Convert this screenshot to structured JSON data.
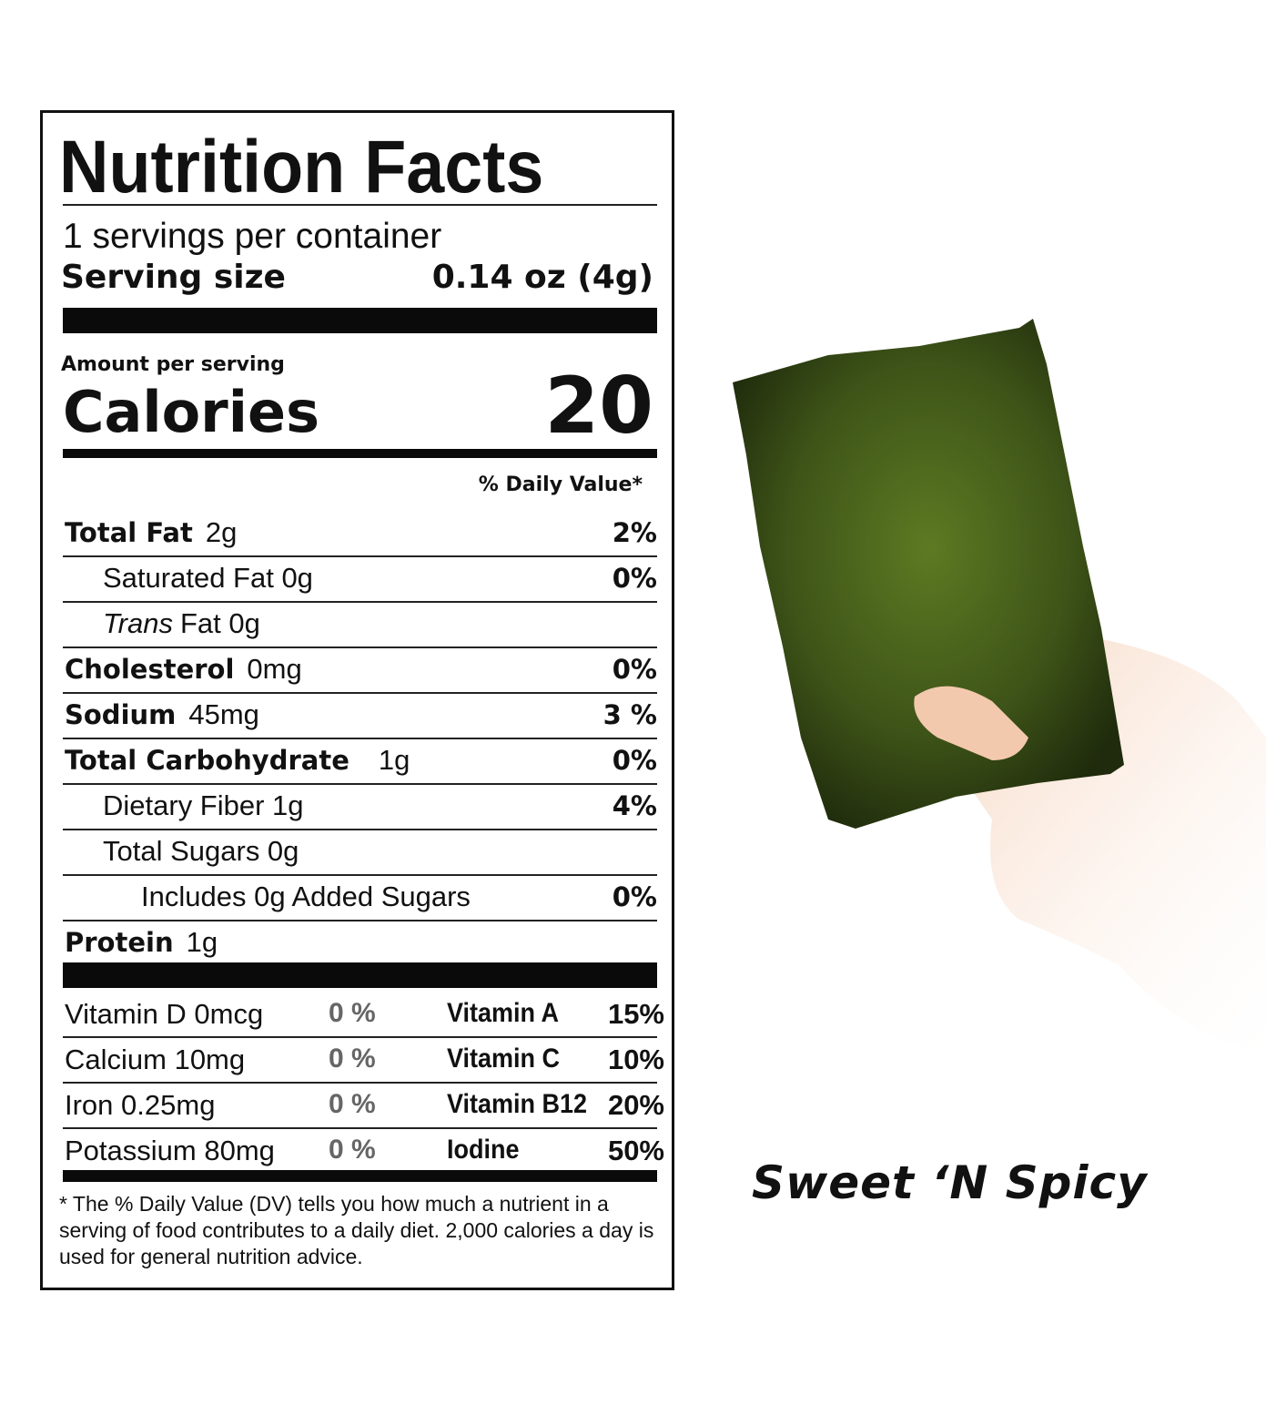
{
  "label": {
    "title": "Nutrition Facts",
    "servings": "1 servings per container",
    "serving_size_label": "Serving size",
    "serving_size_value": "0.14 oz (4g)",
    "amount_per_serving": "Amount per serving",
    "calories_label": "Calories",
    "calories_value": "20",
    "dv_header": "% Daily Value*",
    "nutrients": [
      {
        "name": "Total Fat",
        "amount": "2g",
        "dv": "2%",
        "bold": true,
        "indent": 0
      },
      {
        "name": "Saturated Fat 0g",
        "amount": "",
        "dv": "0%",
        "bold": false,
        "indent": 1
      },
      {
        "name": "Trans",
        "amount": "Fat 0g",
        "dv": "",
        "bold": false,
        "indent": 1,
        "italic_name": true
      },
      {
        "name": "Cholesterol",
        "amount": "0mg",
        "dv": "0%",
        "bold": true,
        "indent": 0
      },
      {
        "name": "Sodium",
        "amount": "45mg",
        "dv": "3 %",
        "bold": true,
        "indent": 0
      },
      {
        "name": "Total Carbohydrate",
        "amount": "1g",
        "dv": "0%",
        "bold": true,
        "indent": 0
      },
      {
        "name": "Dietary Fiber 1g",
        "amount": "",
        "dv": "4%",
        "bold": false,
        "indent": 1
      },
      {
        "name": "Total Sugars 0g",
        "amount": "",
        "dv": "",
        "bold": false,
        "indent": 1
      },
      {
        "name": "Includes 0g Added Sugars",
        "amount": "",
        "dv": "0%",
        "bold": false,
        "indent": 2
      },
      {
        "name": "Protein",
        "amount": "1g",
        "dv": "",
        "bold": true,
        "indent": 0
      }
    ],
    "vitamins": [
      {
        "name": "Vitamin D 0mcg",
        "dv": "0 %",
        "extra_name": "Vitamin A",
        "extra_dv": "15%"
      },
      {
        "name": "Calcium 10mg",
        "dv": "0 %",
        "extra_name": "Vitamin C",
        "extra_dv": "10%"
      },
      {
        "name": "Iron 0.25mg",
        "dv": "0 %",
        "extra_name": "Vitamin B12",
        "extra_dv": "20%"
      },
      {
        "name": "Potassium 80mg",
        "dv": "0 %",
        "extra_name": "Iodine",
        "extra_dv": "50%"
      }
    ],
    "footnote": "* The % Daily Value (DV) tells you how much a nutrient in a serving of food contributes to a daily diet. 2,000 calories a day is used for general nutrition advice."
  },
  "product": {
    "flavor": "Sweet ‘N Spicy",
    "image": "hand-holding-seaweed-sheet"
  },
  "colors": {
    "seaweed": "#3e5418",
    "skin": "#f2c8ad"
  }
}
